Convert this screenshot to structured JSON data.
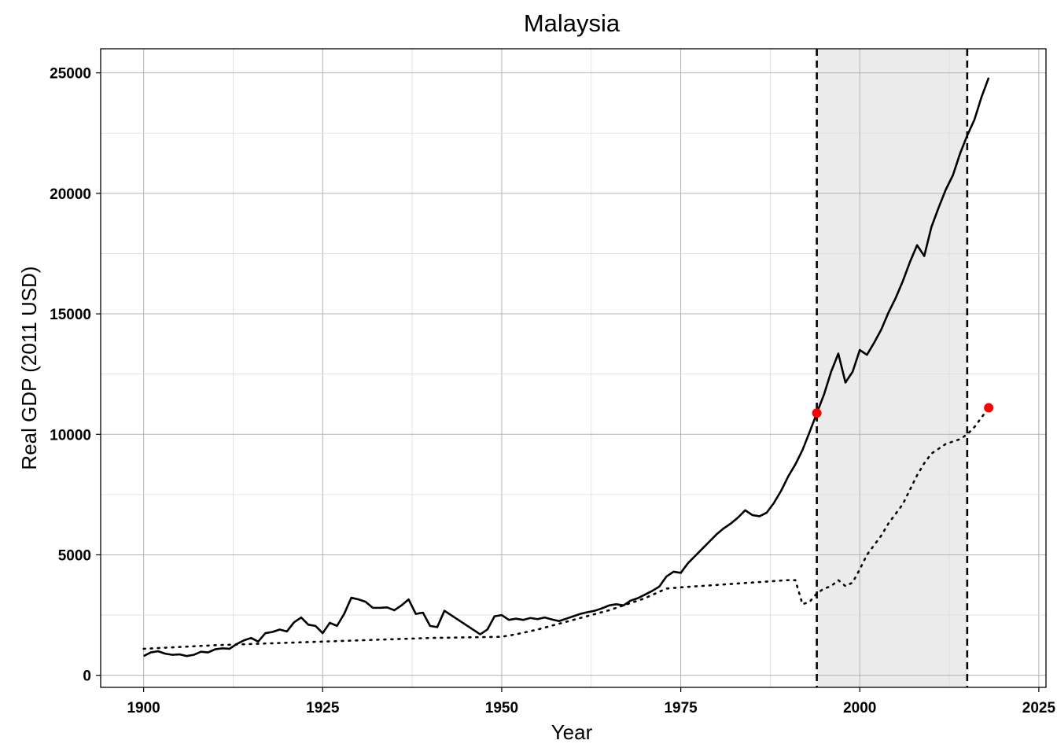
{
  "chart_data": {
    "type": "line",
    "title": "Malaysia",
    "xlabel": "Year",
    "ylabel": "Real GDP (2011 USD)",
    "xlim": [
      1894,
      2026
    ],
    "ylim": [
      -500,
      26000
    ],
    "xticks": [
      1900,
      1925,
      1950,
      1975,
      2000,
      2025
    ],
    "yticks": [
      0,
      5000,
      10000,
      15000,
      20000,
      25000
    ],
    "grid": true,
    "legend": "none",
    "shaded_period": [
      1994,
      2015
    ],
    "vlines": [
      1994,
      2015
    ],
    "colors": {
      "line": "#000000",
      "shade": "#ebebeb",
      "point": "#ff0000"
    },
    "series": [
      {
        "style": "solid",
        "x": [
          1900,
          1901,
          1902,
          1903,
          1904,
          1905,
          1906,
          1907,
          1908,
          1909,
          1910,
          1911,
          1912,
          1913,
          1914,
          1915,
          1916,
          1917,
          1918,
          1919,
          1920,
          1921,
          1922,
          1923,
          1924,
          1925,
          1926,
          1927,
          1928,
          1929,
          1930,
          1931,
          1932,
          1933,
          1934,
          1935,
          1936,
          1937,
          1938,
          1939,
          1940,
          1941,
          1942,
          1947,
          1948,
          1949,
          1950,
          1951,
          1952,
          1953,
          1954,
          1955,
          1956,
          1957,
          1958,
          1959,
          1960,
          1961,
          1962,
          1963,
          1964,
          1965,
          1966,
          1967,
          1968,
          1969,
          1970,
          1971,
          1972,
          1973,
          1974,
          1975,
          1976,
          1977,
          1978,
          1979,
          1980,
          1981,
          1982,
          1983,
          1984,
          1985,
          1986,
          1987,
          1988,
          1989,
          1990,
          1991,
          1992,
          1993,
          1994,
          1995,
          1996,
          1997,
          1998,
          1999,
          2000,
          2001,
          2002,
          2003,
          2004,
          2005,
          2006,
          2007,
          2008,
          2009,
          2010,
          2011,
          2012,
          2013,
          2014,
          2015,
          2016,
          2017,
          2018
        ],
        "y": [
          800,
          950,
          1000,
          900,
          850,
          870,
          800,
          850,
          980,
          950,
          1080,
          1120,
          1100,
          1300,
          1450,
          1550,
          1400,
          1750,
          1800,
          1900,
          1820,
          2200,
          2400,
          2100,
          2050,
          1750,
          2180,
          2050,
          2550,
          3220,
          3150,
          3050,
          2800,
          2800,
          2820,
          2700,
          2900,
          3150,
          2550,
          2600,
          2050,
          2000,
          2680,
          1700,
          1900,
          2450,
          2500,
          2300,
          2350,
          2300,
          2380,
          2330,
          2400,
          2320,
          2250,
          2350,
          2450,
          2550,
          2620,
          2680,
          2780,
          2900,
          2950,
          2900,
          3100,
          3200,
          3350,
          3500,
          3680,
          4100,
          4300,
          4250,
          4650,
          4950,
          5250,
          5550,
          5850,
          6100,
          6300,
          6550,
          6850,
          6650,
          6600,
          6750,
          7150,
          7650,
          8250,
          8750,
          9350,
          10100,
          10880,
          11650,
          12600,
          13350,
          12150,
          12600,
          13500,
          13300,
          13800,
          14350,
          15050,
          15650,
          16350,
          17150,
          17850,
          17400,
          18600,
          19400,
          20150,
          20750,
          21650,
          22400,
          23050,
          24000,
          24800
        ]
      },
      {
        "style": "dotted",
        "x": [
          1900,
          1910,
          1920,
          1930,
          1940,
          1950,
          1952,
          1955,
          1960,
          1965,
          1970,
          1973,
          1975,
          1980,
          1985,
          1990,
          1991,
          1992,
          1993,
          1994,
          1995,
          1996,
          1997,
          1998,
          1999,
          2000,
          2001,
          2002,
          2003,
          2004,
          2005,
          2006,
          2007,
          2008,
          2009,
          2010,
          2011,
          2012,
          2013,
          2014,
          2015,
          2016,
          2017,
          2018
        ],
        "y": [
          1100,
          1250,
          1350,
          1450,
          1550,
          1600,
          1700,
          1900,
          2300,
          2700,
          3200,
          3600,
          3650,
          3750,
          3850,
          3950,
          3950,
          2950,
          3050,
          3400,
          3600,
          3700,
          3950,
          3700,
          3850,
          4400,
          5000,
          5400,
          5800,
          6300,
          6700,
          7100,
          7700,
          8300,
          8800,
          9200,
          9400,
          9600,
          9700,
          9800,
          10000,
          10300,
          10700,
          11100
        ]
      }
    ],
    "highlight_points": [
      {
        "x": 1994,
        "y": 10880
      },
      {
        "x": 2018,
        "y": 11100
      }
    ]
  }
}
